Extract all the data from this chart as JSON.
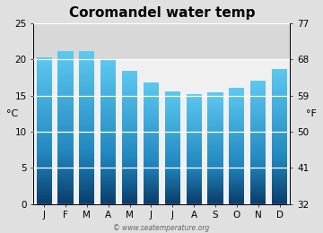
{
  "title": "Coromandel water temp",
  "months": [
    "J",
    "F",
    "M",
    "A",
    "M",
    "J",
    "J",
    "A",
    "S",
    "O",
    "N",
    "D"
  ],
  "values_c": [
    20.3,
    21.1,
    21.1,
    20.0,
    18.4,
    16.8,
    15.6,
    15.2,
    15.4,
    16.0,
    17.1,
    18.7
  ],
  "ylim_c": [
    0,
    25
  ],
  "yticks_c": [
    0,
    5,
    10,
    15,
    20,
    25
  ],
  "yticks_f": [
    32,
    41,
    50,
    59,
    68,
    77
  ],
  "ylabel_left": "°C",
  "ylabel_right": "°F",
  "bar_color_top": "#5bc8f0",
  "bar_color_mid": "#2288c0",
  "bar_color_bottom": "#0a3d6b",
  "background_color": "#e0e0e0",
  "plot_bg_color": "#f0f0f0",
  "above_ticks_bg": "#d8d8d8",
  "grid_color": "#ffffff",
  "watermark": "© www.seatemperature.org",
  "title_fontsize": 11,
  "axis_fontsize": 8,
  "tick_fontsize": 7.5,
  "bar_width": 0.72
}
